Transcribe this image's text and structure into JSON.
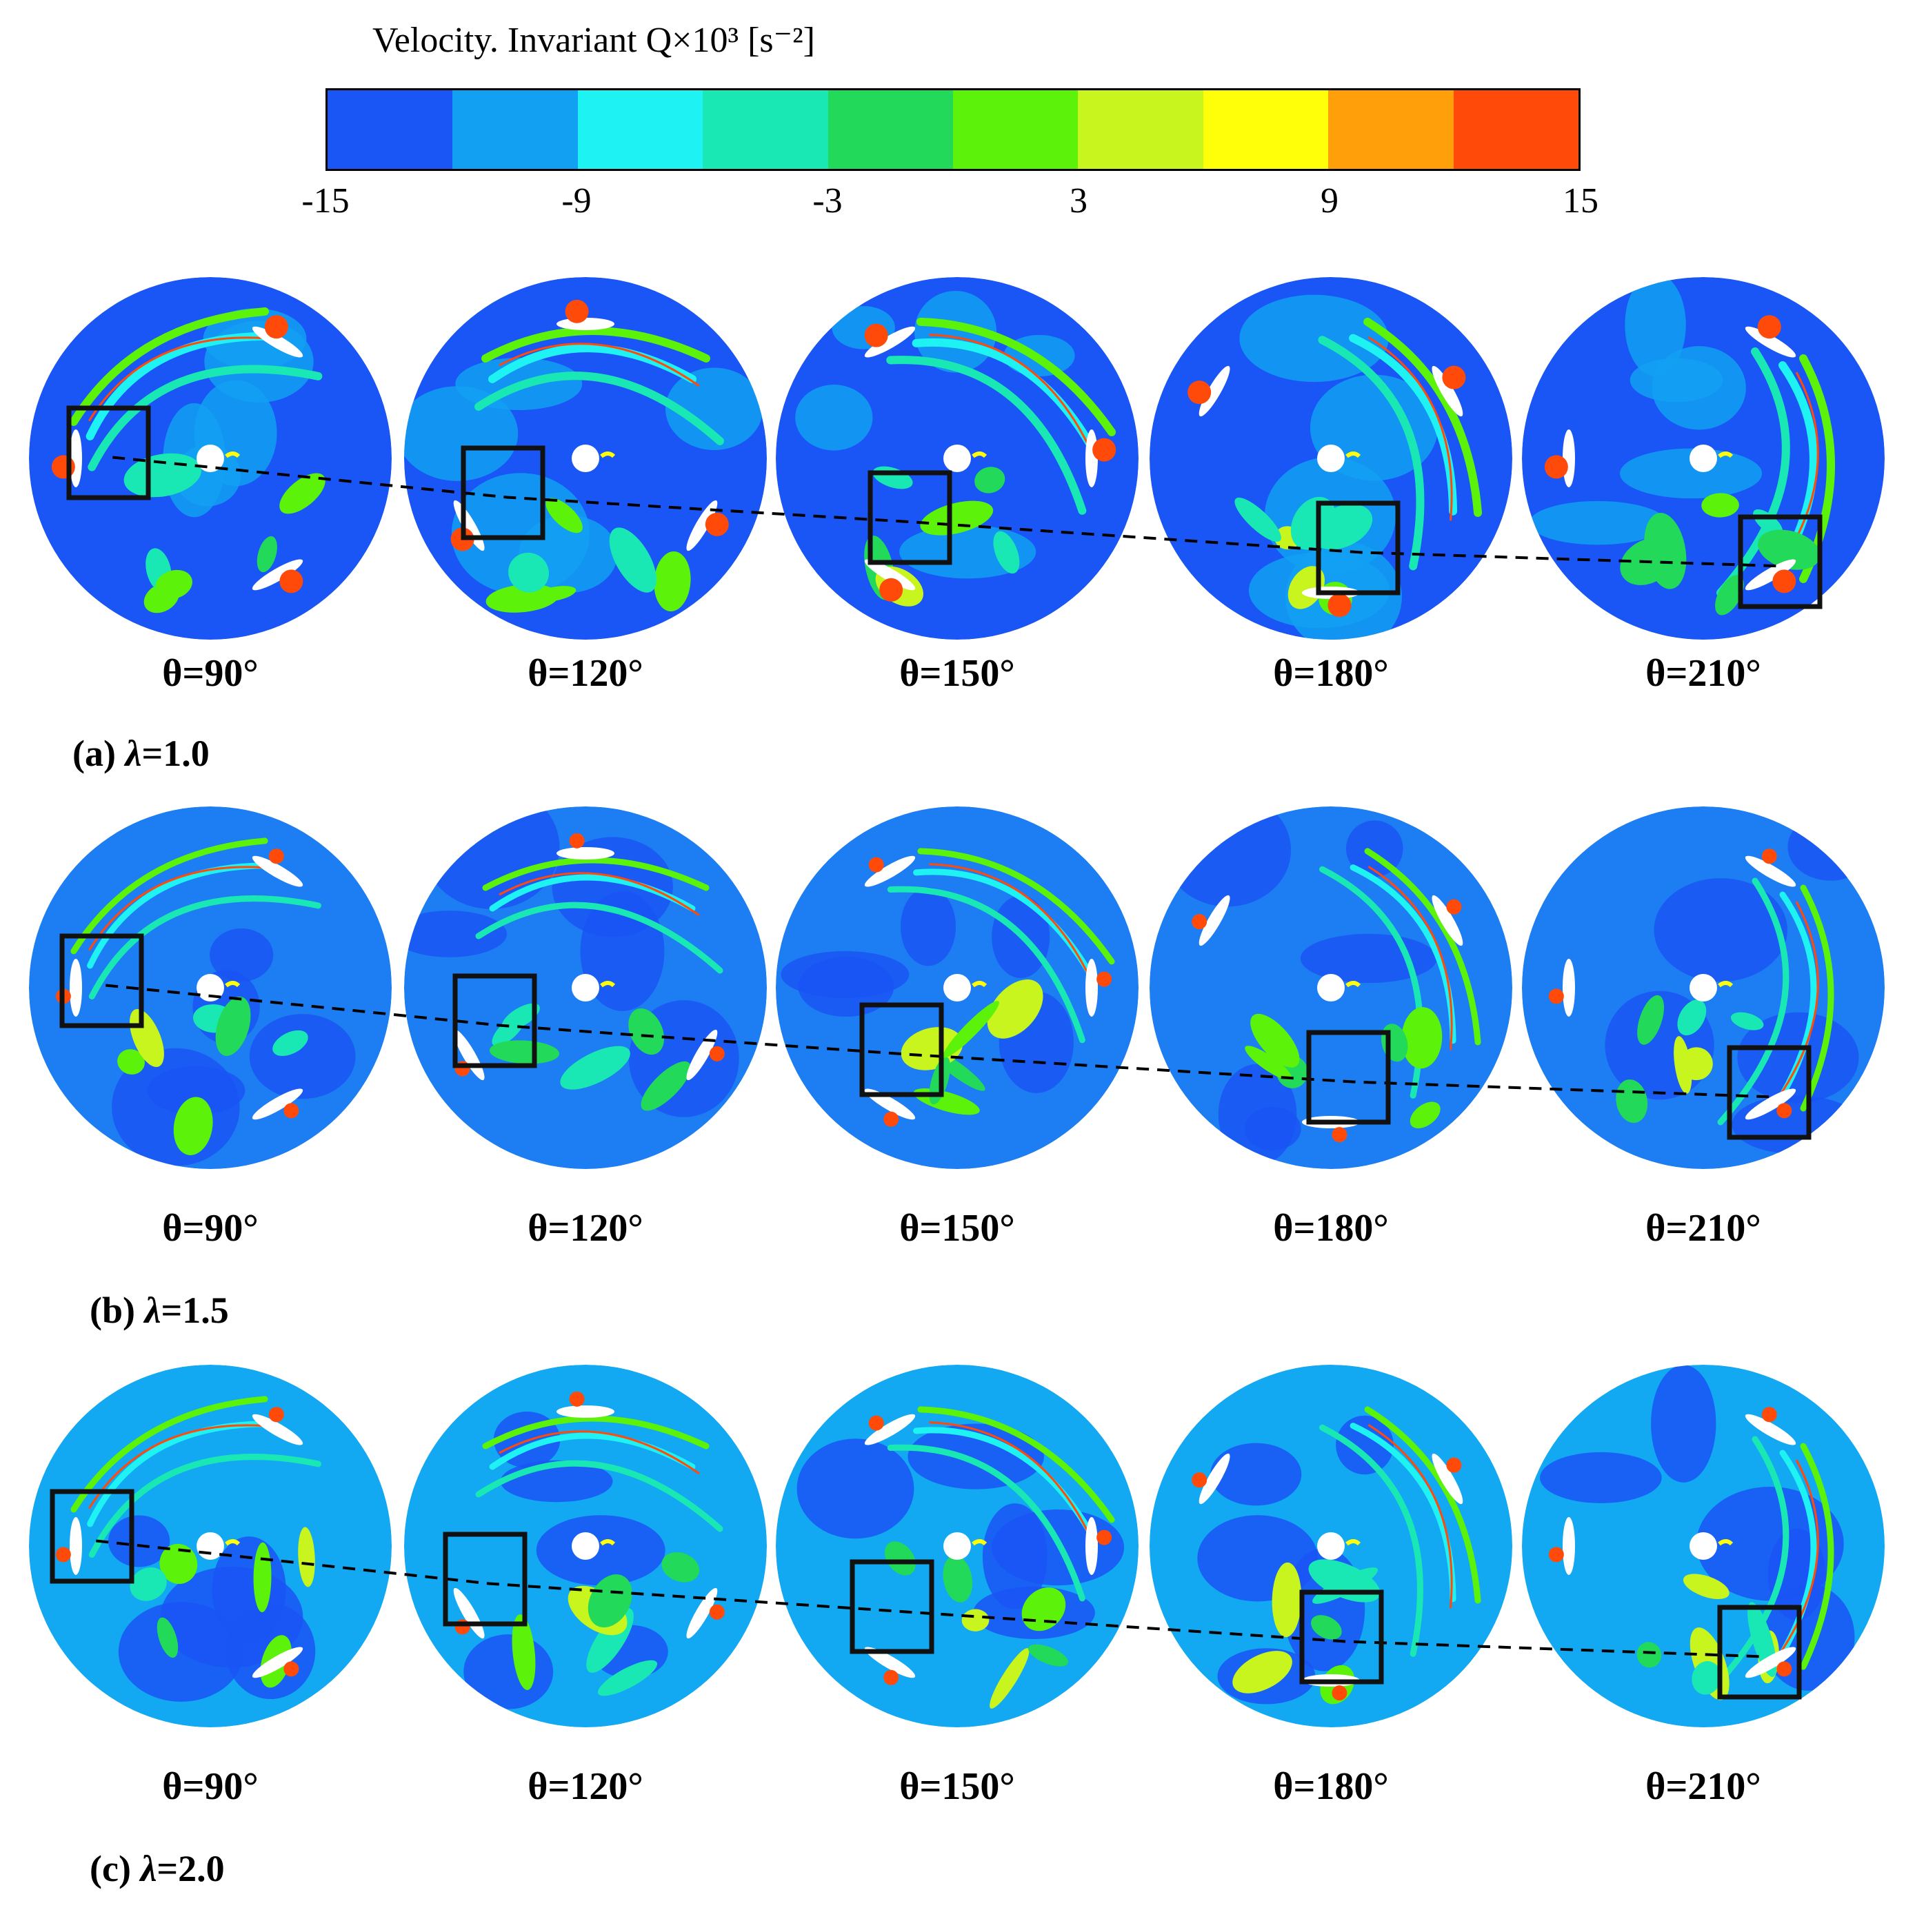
{
  "colorbar": {
    "title": "Velocity. Invariant Q×10³ [s⁻²]",
    "min": -15,
    "max": 15,
    "ticks": [
      "-15",
      "-9",
      "-3",
      "3",
      "9",
      "15"
    ],
    "colors": [
      "#1a55f5",
      "#12a0f2",
      "#1ef2f2",
      "#19e8b4",
      "#22d95a",
      "#5cf20a",
      "#c8f51e",
      "#ffff0a",
      "#ffa00a",
      "#ff4a0a"
    ]
  },
  "rows": [
    {
      "caption_prefix": "(a) ",
      "lambda_symbol": "λ",
      "lambda_value": "=1.0",
      "background": "#1a55f5",
      "angles": [
        "θ=90°",
        "θ=120°",
        "θ=150°",
        "θ=180°",
        "θ=210°"
      ]
    },
    {
      "caption_prefix": "(b) ",
      "lambda_symbol": "λ",
      "lambda_value": "=1.5",
      "background": "#1d7df2",
      "angles": [
        "θ=90°",
        "θ=120°",
        "θ=150°",
        "θ=180°",
        "θ=210°"
      ]
    },
    {
      "caption_prefix": "(c) ",
      "lambda_symbol": "λ",
      "lambda_value": "=2.0",
      "background": "#12a8f2",
      "angles": [
        "θ=90°",
        "θ=120°",
        "θ=150°",
        "θ=180°",
        "θ=210°"
      ]
    }
  ]
}
